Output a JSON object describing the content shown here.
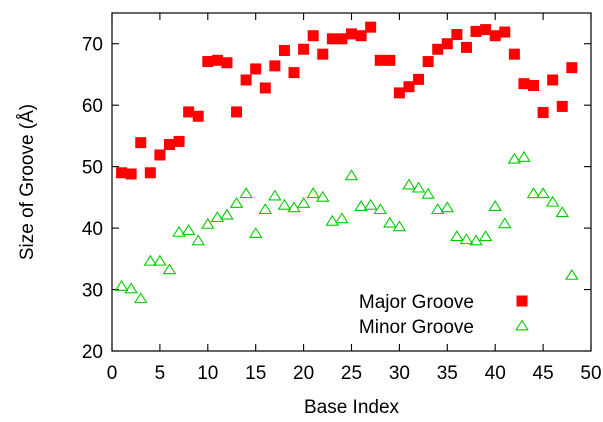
{
  "chart_data": {
    "type": "scatter",
    "xlabel": "Base Index",
    "ylabel": "Size of Groove (Å)",
    "xlim": [
      0,
      50
    ],
    "ylim": [
      20,
      75
    ],
    "xticks": [
      0,
      5,
      10,
      15,
      20,
      25,
      30,
      35,
      40,
      45,
      50
    ],
    "yticks": [
      20,
      30,
      40,
      50,
      60,
      70
    ],
    "grid": false,
    "legend_position": "bottom-right",
    "series": [
      {
        "name": "Major Groove",
        "marker": "filled-square",
        "color": "#ff0000",
        "points": [
          [
            1,
            49.0
          ],
          [
            2,
            48.8
          ],
          [
            3,
            53.9
          ],
          [
            4,
            49.0
          ],
          [
            5,
            51.9
          ],
          [
            6,
            53.6
          ],
          [
            7,
            54.1
          ],
          [
            8,
            58.9
          ],
          [
            9,
            58.2
          ],
          [
            10,
            67.1
          ],
          [
            11,
            67.3
          ],
          [
            12,
            66.9
          ],
          [
            13,
            58.9
          ],
          [
            14,
            64.1
          ],
          [
            15,
            65.9
          ],
          [
            16,
            62.8
          ],
          [
            17,
            66.4
          ],
          [
            18,
            68.9
          ],
          [
            19,
            65.3
          ],
          [
            20,
            69.1
          ],
          [
            21,
            71.3
          ],
          [
            22,
            68.3
          ],
          [
            23,
            70.8
          ],
          [
            24,
            70.8
          ],
          [
            25,
            71.6
          ],
          [
            26,
            71.3
          ],
          [
            27,
            72.7
          ],
          [
            28,
            67.3
          ],
          [
            29,
            67.3
          ],
          [
            30,
            62.0
          ],
          [
            31,
            63.0
          ],
          [
            32,
            64.2
          ],
          [
            33,
            67.1
          ],
          [
            34,
            69.1
          ],
          [
            35,
            70.0
          ],
          [
            36,
            71.5
          ],
          [
            37,
            69.4
          ],
          [
            38,
            72.0
          ],
          [
            39,
            72.3
          ],
          [
            40,
            71.3
          ],
          [
            41,
            71.9
          ],
          [
            42,
            68.3
          ],
          [
            43,
            63.5
          ],
          [
            44,
            63.2
          ],
          [
            45,
            58.8
          ],
          [
            46,
            64.1
          ],
          [
            47,
            59.8
          ],
          [
            48,
            66.1
          ]
        ]
      },
      {
        "name": "Minor Groove",
        "marker": "open-triangle",
        "color": "#00cc00",
        "points": [
          [
            1,
            30.5
          ],
          [
            2,
            30.1
          ],
          [
            3,
            28.5
          ],
          [
            4,
            34.6
          ],
          [
            5,
            34.6
          ],
          [
            6,
            33.2
          ],
          [
            7,
            39.3
          ],
          [
            8,
            39.6
          ],
          [
            9,
            37.9
          ],
          [
            10,
            40.6
          ],
          [
            11,
            41.7
          ],
          [
            12,
            42.1
          ],
          [
            13,
            44.0
          ],
          [
            14,
            45.6
          ],
          [
            15,
            39.1
          ],
          [
            16,
            43.0
          ],
          [
            17,
            45.2
          ],
          [
            18,
            43.7
          ],
          [
            19,
            43.3
          ],
          [
            20,
            44.0
          ],
          [
            21,
            45.6
          ],
          [
            22,
            45.0
          ],
          [
            23,
            41.1
          ],
          [
            24,
            41.5
          ],
          [
            25,
            48.5
          ],
          [
            26,
            43.5
          ],
          [
            27,
            43.7
          ],
          [
            28,
            43.0
          ],
          [
            29,
            40.8
          ],
          [
            30,
            40.2
          ],
          [
            31,
            47.0
          ],
          [
            32,
            46.5
          ],
          [
            33,
            45.5
          ],
          [
            34,
            43.0
          ],
          [
            35,
            43.3
          ],
          [
            36,
            38.6
          ],
          [
            37,
            38.1
          ],
          [
            38,
            37.9
          ],
          [
            39,
            38.6
          ],
          [
            40,
            43.5
          ],
          [
            41,
            40.7
          ],
          [
            42,
            51.2
          ],
          [
            43,
            51.5
          ],
          [
            44,
            45.6
          ],
          [
            45,
            45.6
          ],
          [
            46,
            44.2
          ],
          [
            47,
            42.5
          ],
          [
            48,
            32.3
          ]
        ]
      }
    ]
  }
}
